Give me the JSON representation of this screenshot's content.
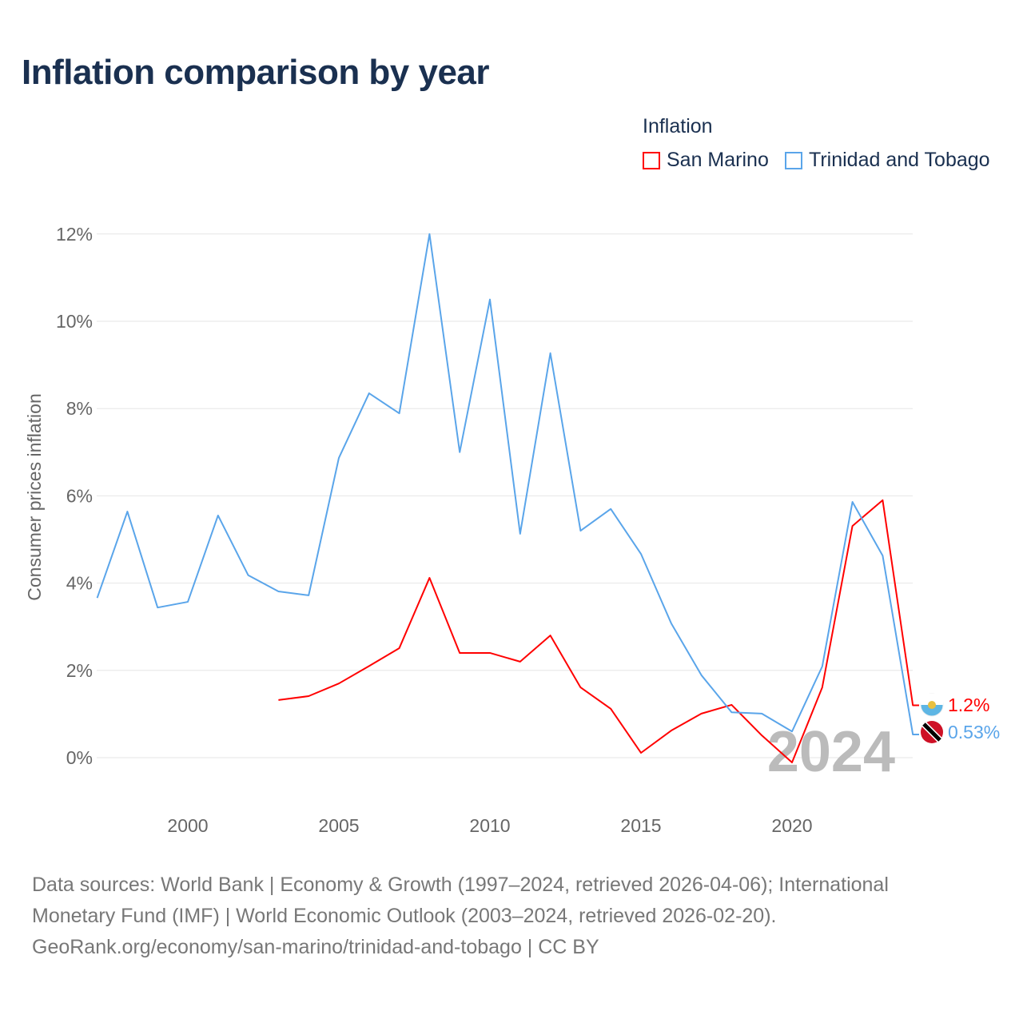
{
  "title": "Inflation comparison by year",
  "legend": {
    "title": "Inflation",
    "items": [
      {
        "name": "San Marino",
        "color": "#ff0000"
      },
      {
        "name": "Trinidad and Tobago",
        "color": "#5aa5ea"
      }
    ]
  },
  "source_lines": [
    "Data sources: World Bank | Economy & Growth (1997–2024, retrieved 2026-04-06); International",
    "Monetary Fund (IMF) | World Economic Outlook (2003–2024, retrieved 2026-02-20).",
    "GeoRank.org/economy/san-marino/trinidad-and-tobago | CC BY"
  ],
  "chart_data": {
    "type": "line",
    "title": "Inflation comparison by year",
    "ylabel": "Consumer prices inflation",
    "xlabel": "",
    "xlim": [
      1997,
      2024
    ],
    "ylim": [
      -1.2,
      12
    ],
    "yticks": [
      0,
      2,
      4,
      6,
      8,
      10,
      12
    ],
    "ytick_labels": [
      "0%",
      "2%",
      "4%",
      "6%",
      "8%",
      "10%",
      "12%"
    ],
    "xticks": [
      2000,
      2005,
      2010,
      2015,
      2020
    ],
    "xtick_labels": [
      "2000",
      "2005",
      "2010",
      "2015",
      "2020"
    ],
    "watermark_year": "2024",
    "series": [
      {
        "name": "San Marino",
        "color": "#ff0000",
        "end_label": "1.2%",
        "flag": "san-marino-flag",
        "x": [
          2003,
          2004,
          2005,
          2006,
          2007,
          2008,
          2009,
          2010,
          2011,
          2012,
          2013,
          2014,
          2015,
          2016,
          2017,
          2018,
          2019,
          2020,
          2021,
          2022,
          2023,
          2024
        ],
        "values": [
          1.32,
          1.41,
          1.7,
          2.1,
          2.51,
          4.12,
          2.4,
          2.4,
          2.2,
          2.8,
          1.61,
          1.12,
          0.11,
          0.62,
          1.01,
          1.21,
          0.51,
          -0.11,
          1.61,
          5.31,
          5.9,
          1.2
        ]
      },
      {
        "name": "Trinidad and Tobago",
        "color": "#5aa5ea",
        "end_label": "0.53%",
        "flag": "trinidad-flag",
        "x": [
          1997,
          1998,
          1999,
          2000,
          2001,
          2002,
          2003,
          2004,
          2005,
          2006,
          2007,
          2008,
          2009,
          2010,
          2011,
          2012,
          2013,
          2014,
          2015,
          2016,
          2017,
          2018,
          2019,
          2020,
          2021,
          2022,
          2023,
          2024
        ],
        "values": [
          3.66,
          5.64,
          3.44,
          3.57,
          5.55,
          4.18,
          3.81,
          3.72,
          6.87,
          8.35,
          7.89,
          12.0,
          7.0,
          10.5,
          5.13,
          9.27,
          5.2,
          5.7,
          4.67,
          3.08,
          1.89,
          1.04,
          1.01,
          0.6,
          2.09,
          5.86,
          4.63,
          0.53
        ]
      }
    ]
  }
}
